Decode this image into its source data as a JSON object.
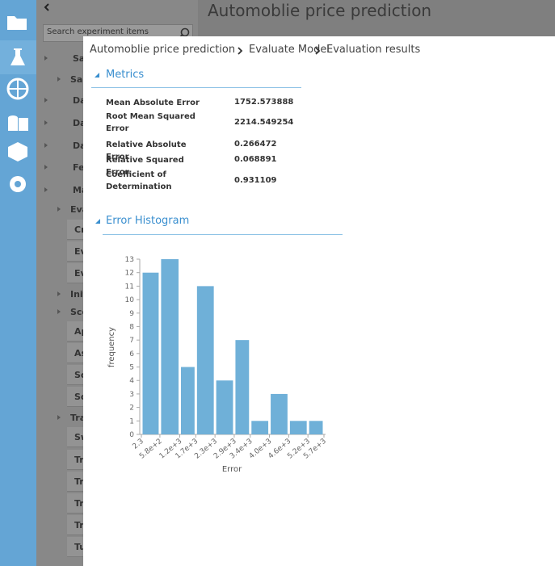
{
  "header": {
    "title": "Automoblie price prediction"
  },
  "search": {
    "placeholder": "Search experiment items"
  },
  "tree": [
    "Sa",
    "Sar",
    "Da",
    "Da",
    "Da",
    "Fea",
    "Ma",
    "Eva",
    "Cr",
    "Ev",
    "Ev",
    "Init",
    "Sco",
    "Ap",
    "As",
    "Sc",
    "Sc",
    "Tra",
    "Sw",
    "Tra",
    "Tra",
    "Tra",
    "Tra",
    "Tu"
  ],
  "breadcrumb": [
    "Automoblie price prediction",
    "Evaluate Model",
    "Evaluation results"
  ],
  "metrics": {
    "title": "Metrics",
    "rows": [
      [
        "Mean Absolute Error",
        "1752.573888"
      ],
      [
        "Root Mean Squared Error",
        "2214.549254"
      ],
      [
        "Relative Absolute Error",
        "0.266472"
      ],
      [
        "Relative Squared Error",
        "0.068891"
      ],
      [
        "Coefficient of Determination",
        "0.931109"
      ]
    ]
  },
  "histogram_section": {
    "title": "Error Histogram"
  },
  "chart_data": {
    "type": "histogram",
    "bins": [
      2.3,
      580,
      1200,
      1700,
      2300,
      2900,
      3400,
      4000,
      4600,
      5200,
      5700
    ],
    "values": [
      12,
      13,
      5,
      11,
      4,
      7,
      1,
      3,
      1,
      1
    ],
    "color": "#6fb0d8",
    "xlabel": "Error",
    "ylabel": "frequency",
    "xlim": [
      2.3,
      5700
    ],
    "xticks": [
      {
        "value": 2.3,
        "label": "2.3"
      },
      {
        "value": 580,
        "label": "5.8e+2"
      },
      {
        "value": 1200,
        "label": "1.2e+3"
      },
      {
        "value": 1700,
        "label": "1.7e+3"
      },
      {
        "value": 2300,
        "label": "2.3e+3"
      },
      {
        "value": 2900,
        "label": "2.9e+3"
      },
      {
        "value": 3400,
        "label": "3.4e+3"
      },
      {
        "value": 4000,
        "label": "4.0e+3"
      },
      {
        "value": 4600,
        "label": "4.6e+3"
      },
      {
        "value": 5200,
        "label": "5.2e+3"
      },
      {
        "value": 5700,
        "label": "5.7e+3"
      }
    ],
    "ylim": [
      0,
      13
    ],
    "yticks": [
      0,
      1,
      2,
      3,
      4,
      5,
      6,
      7,
      8,
      9,
      10,
      11,
      12,
      13
    ]
  }
}
